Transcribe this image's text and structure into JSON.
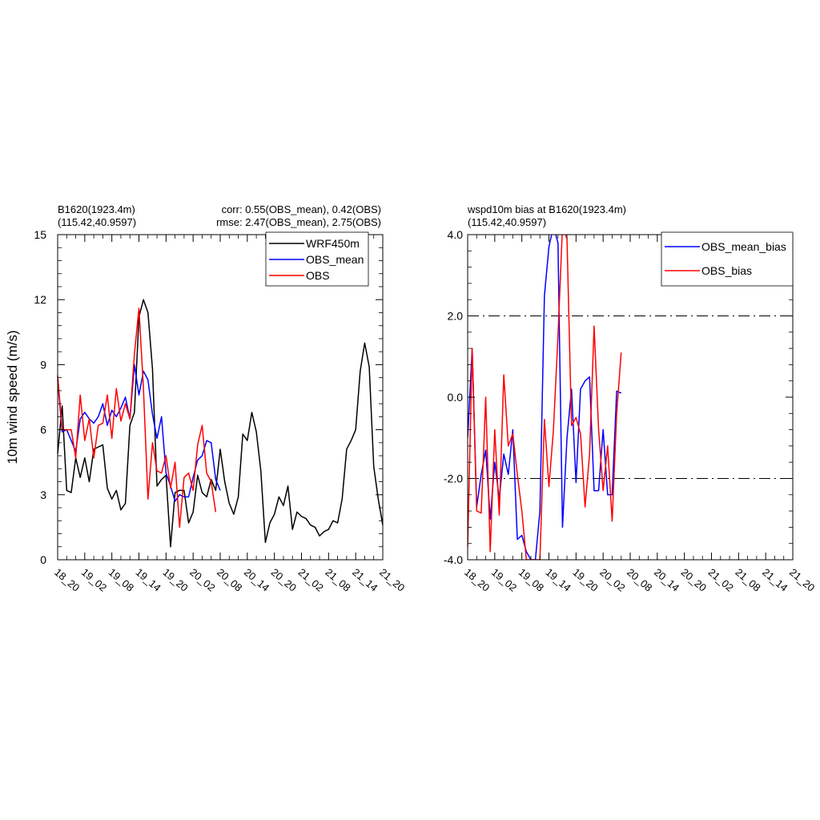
{
  "colors": {
    "wrf": "#000000",
    "obs_mean": "#0000ff",
    "obs": "#ff0000"
  },
  "chart_data": [
    {
      "type": "line",
      "title_left": [
        "B1620(1923.4m)",
        "(115.42,40.9597)"
      ],
      "title_right": [
        "corr:  0.55(OBS_mean),  0.42(OBS)",
        "rmse: 2.47(OBS_mean),  2.75(OBS)"
      ],
      "ylabel": "10m wind speed (m/s)",
      "xlabel": "",
      "xlim": [
        0,
        72
      ],
      "ylim": [
        0,
        15
      ],
      "yticks": [
        0,
        3,
        6,
        9,
        12,
        15
      ],
      "ytick_labels": [
        "0",
        "3",
        "6",
        "9",
        "12",
        "15"
      ],
      "xtick_labels": [
        "18_20",
        "19_02",
        "19_08",
        "19_14",
        "19_20",
        "20_02",
        "20_08",
        "20_14",
        "20_20",
        "21_02",
        "21_08",
        "21_14",
        "21_20"
      ],
      "legend": "top-right",
      "series": [
        {
          "name": "WRF450m",
          "color_key": "wrf",
          "values": [
            4.9,
            7.1,
            3.2,
            3.1,
            4.7,
            3.8,
            4.7,
            3.6,
            5.1,
            5.2,
            5.3,
            3.3,
            2.8,
            3.2,
            2.3,
            2.6,
            6.2,
            6.8,
            11.2,
            12.0,
            11.4,
            8.8,
            3.4,
            3.7,
            3.9,
            0.6,
            3.1,
            3.2,
            3.2,
            1.7,
            2.2,
            3.9,
            3.1,
            2.9,
            3.7,
            3.2,
            5.1,
            3.6,
            2.6,
            2.1,
            2.9,
            5.8,
            5.5,
            6.8,
            5.9,
            4.1,
            0.8,
            1.7,
            2.1,
            2.9,
            2.5,
            3.4,
            1.4,
            2.2,
            2.0,
            1.9,
            1.6,
            1.5,
            1.1,
            1.3,
            1.4,
            1.8,
            1.7,
            2.8,
            5.1,
            5.5,
            6.0,
            8.7,
            10.0,
            8.9,
            4.3,
            2.8,
            1.6
          ]
        },
        {
          "name": "OBS_mean",
          "color_key": "obs_mean",
          "values": [
            8.3,
            5.9,
            6.0,
            5.5,
            5.0,
            6.5,
            6.8,
            6.5,
            6.3,
            6.6,
            7.2,
            6.2,
            6.9,
            6.6,
            7.0,
            7.5,
            6.5,
            9.0,
            7.6,
            8.7,
            8.3,
            6.7,
            5.6,
            6.6,
            4.0,
            3.4,
            2.7,
            3.0,
            2.9,
            2.9,
            3.8,
            4.6,
            4.8,
            5.5,
            5.4,
            3.7,
            3.2
          ]
        },
        {
          "name": "OBS",
          "color_key": "obs",
          "values": [
            8.5,
            6.0,
            6.0,
            6.0,
            4.7,
            7.6,
            5.5,
            6.5,
            4.7,
            6.2,
            6.3,
            7.6,
            5.6,
            7.9,
            6.4,
            7.2,
            6.5,
            9.5,
            11.6,
            7.9,
            2.8,
            5.4,
            4.1,
            4.0,
            4.8,
            3.3,
            4.5,
            1.5,
            3.8,
            4.0,
            3.2,
            5.3,
            6.2,
            4.0,
            3.6,
            2.2
          ]
        }
      ]
    },
    {
      "type": "line",
      "title_left": [
        "wspd10m bias at B1620(1923.4m)",
        "(115.42,40.9597)"
      ],
      "ylabel": "",
      "xlabel": "",
      "xlim": [
        0,
        72
      ],
      "ylim": [
        -4.0,
        4.0
      ],
      "yticks": [
        -4.0,
        -2.0,
        0.0,
        2.0,
        4.0
      ],
      "ytick_labels": [
        "-4.0",
        "-2.0",
        "0.0",
        "2.0",
        "4.0"
      ],
      "xtick_labels": [
        "18_20",
        "19_02",
        "19_08",
        "19_14",
        "19_20",
        "20_02",
        "20_08",
        "20_14",
        "20_20",
        "21_02",
        "21_08",
        "21_14",
        "21_20"
      ],
      "reference_lines": [
        2.0,
        -2.0
      ],
      "legend": "top-right",
      "series": [
        {
          "name": "OBS_mean_bias",
          "color_key": "obs_mean",
          "values": [
            -1.0,
            1.2,
            -2.7,
            -1.9,
            -1.3,
            -3.0,
            -1.6,
            -2.5,
            -1.4,
            -1.9,
            -0.8,
            -3.5,
            -3.4,
            -3.8,
            -4.0,
            -4.0,
            -2.8,
            2.5,
            3.7,
            4.2,
            3.8,
            -3.2,
            -1.0,
            0.2,
            -2.1,
            0.2,
            0.4,
            0.5,
            -2.3,
            -2.3,
            -0.8,
            -2.4,
            -2.4,
            0.15,
            0.1
          ]
        },
        {
          "name": "OBS_bias",
          "color_key": "obs",
          "values": [
            -3.7,
            1.2,
            -2.8,
            -2.85,
            0.0,
            -3.8,
            -0.8,
            -2.9,
            0.55,
            -1.2,
            -0.9,
            -1.9,
            -2.8,
            -4.0,
            -4.0,
            -4.0,
            -4.0,
            -0.55,
            -2.2,
            -0.8,
            1.5,
            4.2,
            3.9,
            -0.7,
            -0.5,
            -0.9,
            -2.7,
            -1.4,
            1.75,
            -0.8,
            -2.3,
            -1.2,
            -3.05,
            -0.4,
            1.1
          ]
        }
      ]
    }
  ]
}
